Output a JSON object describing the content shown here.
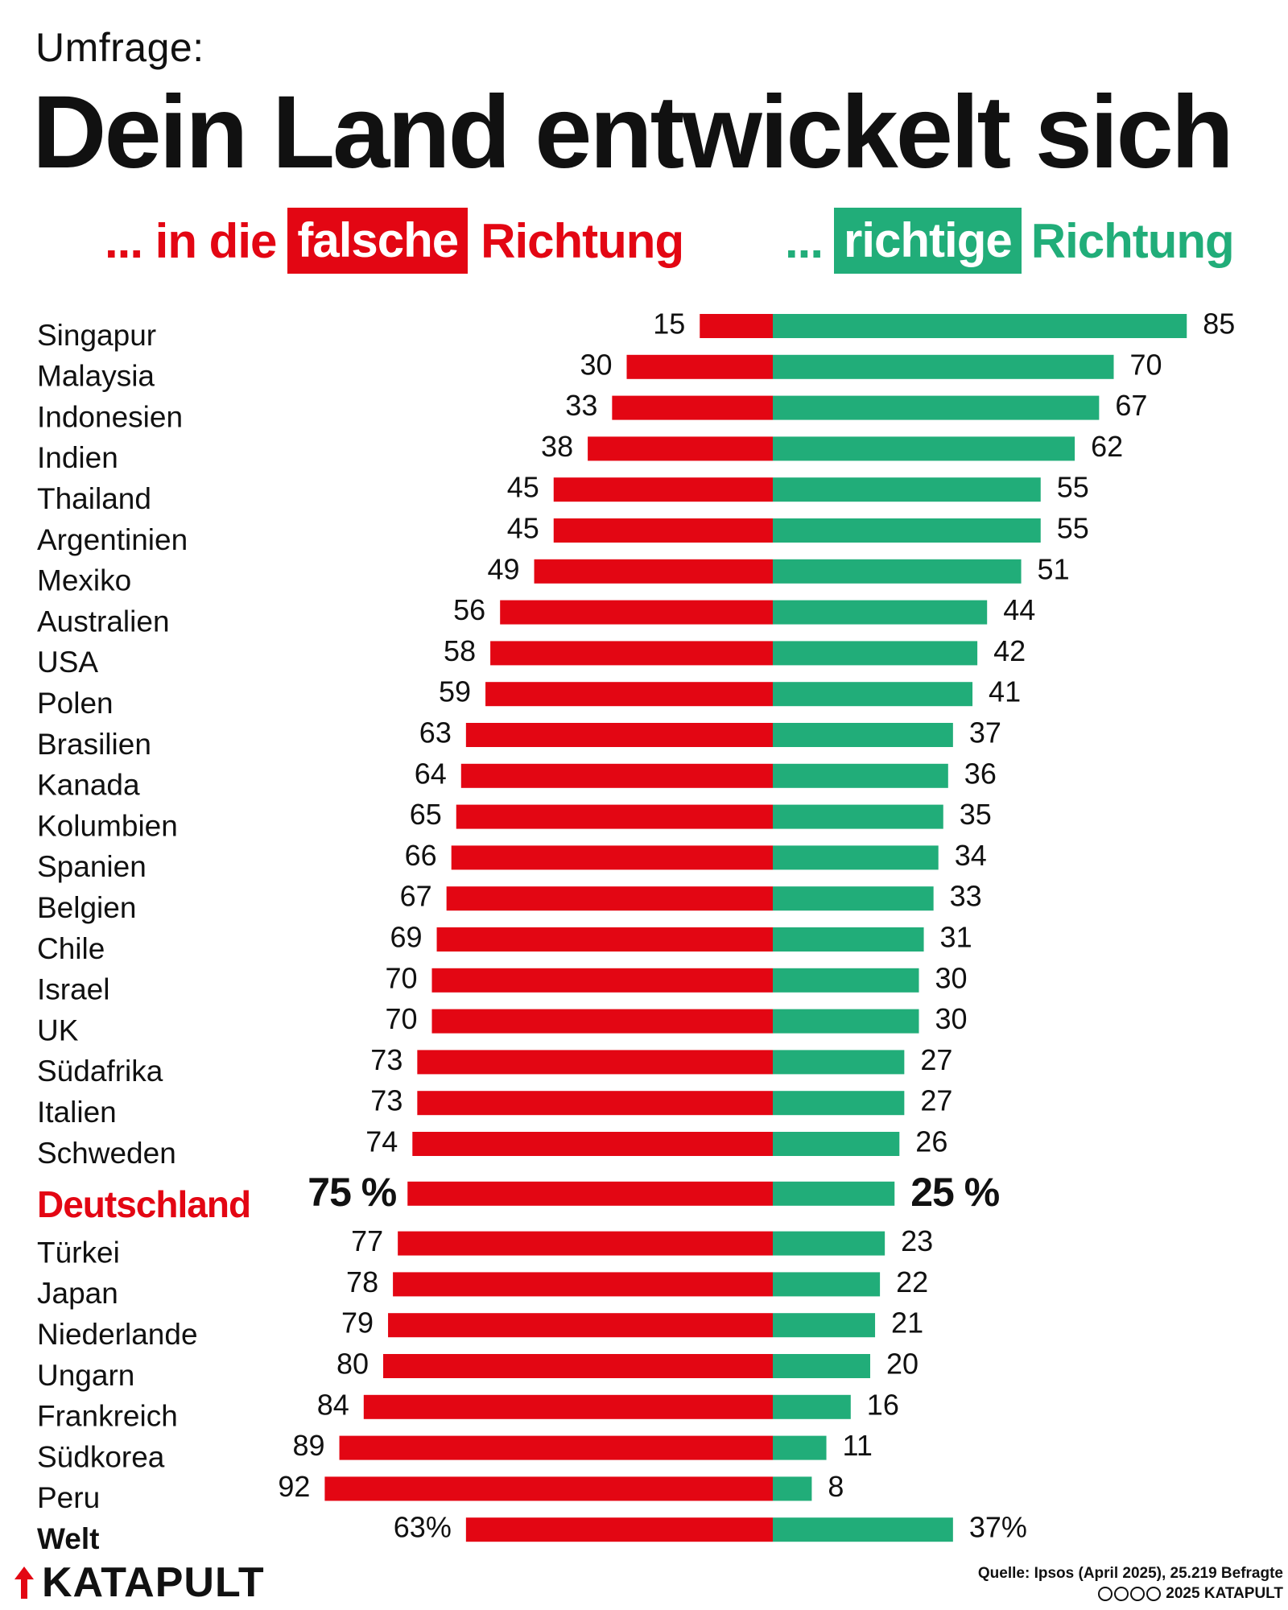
{
  "header": {
    "kicker": "Umfrage:",
    "title": "Dein Land entwickelt sich"
  },
  "legend": {
    "left": {
      "prefix": "... in die",
      "highlight": "falsche",
      "suffix": "Richtung"
    },
    "right": {
      "prefix": "...",
      "highlight": "richtige",
      "suffix": "Richtung"
    }
  },
  "colors": {
    "wrong": "#e30613",
    "right": "#21ad79",
    "text": "#111111"
  },
  "chart_data": {
    "type": "bar",
    "orientation": "horizontal-diverging",
    "categories": [
      "Singapur",
      "Malaysia",
      "Indonesien",
      "Indien",
      "Thailand",
      "Argentinien",
      "Mexiko",
      "Australien",
      "USA",
      "Polen",
      "Brasilien",
      "Kanada",
      "Kolumbien",
      "Spanien",
      "Belgien",
      "Chile",
      "Israel",
      "UK",
      "Südafrika",
      "Italien",
      "Schweden",
      "Deutschland",
      "Türkei",
      "Japan",
      "Niederlande",
      "Ungarn",
      "Frankreich",
      "Südkorea",
      "Peru",
      "Welt"
    ],
    "series": [
      {
        "name": "falsche Richtung",
        "values": [
          15,
          30,
          33,
          38,
          45,
          45,
          49,
          56,
          58,
          59,
          63,
          64,
          65,
          66,
          67,
          69,
          70,
          70,
          73,
          73,
          74,
          75,
          77,
          78,
          79,
          80,
          84,
          89,
          92,
          63
        ]
      },
      {
        "name": "richtige Richtung",
        "values": [
          85,
          70,
          67,
          62,
          55,
          55,
          51,
          44,
          42,
          41,
          37,
          36,
          35,
          34,
          33,
          31,
          30,
          30,
          27,
          27,
          26,
          25,
          23,
          22,
          21,
          20,
          16,
          11,
          8,
          37
        ]
      }
    ],
    "value_labels_left": [
      "15",
      "30",
      "33",
      "38",
      "45",
      "45",
      "49",
      "56",
      "58",
      "59",
      "63",
      "64",
      "65",
      "66",
      "67",
      "69",
      "70",
      "70",
      "73",
      "73",
      "74",
      "75 %",
      "77",
      "78",
      "79",
      "80",
      "84",
      "89",
      "92",
      "63%"
    ],
    "value_labels_right": [
      "85",
      "70",
      "67",
      "62",
      "55",
      "55",
      "51",
      "44",
      "42",
      "41",
      "37",
      "36",
      "35",
      "34",
      "33",
      "31",
      "30",
      "30",
      "27",
      "27",
      "26",
      "25 %",
      "23",
      "22",
      "21",
      "20",
      "16",
      "11",
      "8",
      "37%"
    ],
    "highlighted_category": "Deutschland",
    "summary_category": "Welt",
    "xlim": [
      0,
      100
    ],
    "grid": false
  },
  "footer": {
    "brand": "KATAPULT",
    "source": "Quelle: Ipsos (April 2025), 25.219 Befragte",
    "copyright": "2025 KATAPULT"
  }
}
